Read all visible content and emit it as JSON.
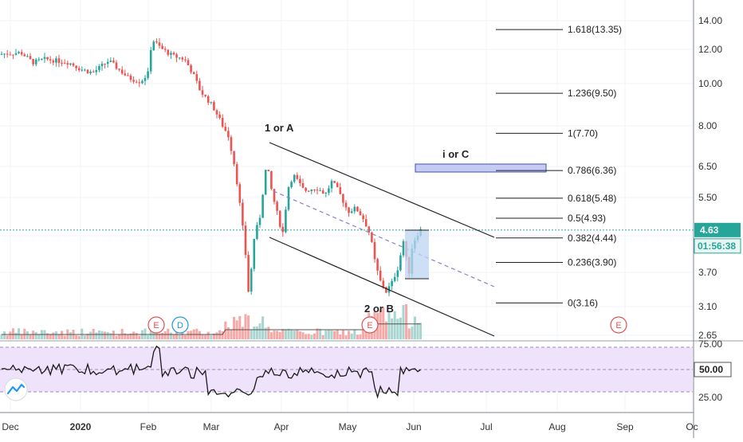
{
  "chart_data": {
    "type": "candlestick",
    "price_axis": {
      "scale": "log",
      "ticks": [
        "14.00",
        "12.00",
        "10.00",
        "8.00",
        "6.50",
        "5.50",
        "4.63",
        "3.70",
        "3.10",
        "2.65"
      ],
      "range": [
        2.6,
        14.5
      ]
    },
    "time_axis": {
      "ticks": [
        "Dec",
        "2020",
        "Feb",
        "Mar",
        "Apr",
        "May",
        "Jun",
        "Jul",
        "Aug",
        "Sep",
        "Oc"
      ]
    },
    "current_price": {
      "label": "4.63",
      "value": 4.63,
      "countdown": "01:56:38",
      "color": "#26a69a"
    },
    "fib_levels": [
      {
        "label": "1.618(13.35)",
        "value": 13.35
      },
      {
        "label": "1.236(9.50)",
        "value": 9.5
      },
      {
        "label": "1(7.70)",
        "value": 7.7
      },
      {
        "label": "0.786(6.36)",
        "value": 6.36
      },
      {
        "label": "0.618(5.48)",
        "value": 5.48
      },
      {
        "label": "0.5(4.93)",
        "value": 4.93
      },
      {
        "label": "0.382(4.44)",
        "value": 4.44
      },
      {
        "label": "0.236(3.90)",
        "value": 3.9
      },
      {
        "label": "0(3.16)",
        "value": 3.16
      }
    ],
    "annotations": {
      "wave_1": "1 or A",
      "wave_2": "2 or B",
      "wave_3": "i or C"
    },
    "event_markers": [
      {
        "label": "E",
        "kind": "earnings"
      },
      {
        "label": "D",
        "kind": "dividend"
      },
      {
        "label": "E",
        "kind": "earnings"
      },
      {
        "label": "E",
        "kind": "earnings"
      }
    ],
    "rsi": {
      "ticks": [
        "75.00",
        "50.00",
        "25.00"
      ],
      "current_label": "50.00",
      "band": [
        30,
        70
      ]
    },
    "colors": {
      "up": "#26a69a",
      "down": "#ef5350",
      "up_volume": "#a8d5cf",
      "down_volume": "#f5a8a6",
      "rsi_band": "#efe3fb",
      "target_box": "#c5cbf3",
      "target_box_border": "#3f51b5",
      "event_marker": "#e05252",
      "dividend_marker": "#1e9ad6"
    }
  }
}
